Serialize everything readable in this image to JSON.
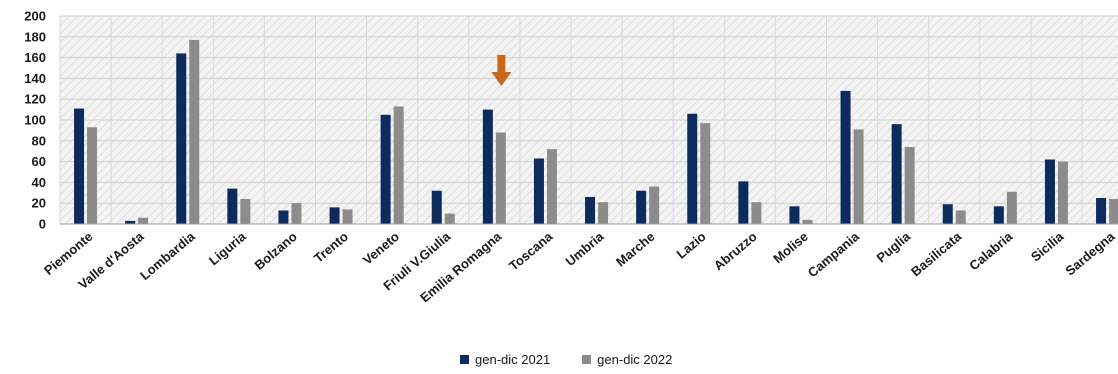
{
  "chart_data": {
    "type": "bar",
    "title": "",
    "xlabel": "",
    "ylabel": "",
    "ylim": [
      0,
      200
    ],
    "yticks": [
      0,
      20,
      40,
      60,
      80,
      100,
      120,
      140,
      160,
      180,
      200
    ],
    "categories": [
      "Piemonte",
      "Valle d'Aosta",
      "Lombardia",
      "Liguria",
      "Bolzano",
      "Trento",
      "Veneto",
      "Friuli V.Giulia",
      "Emilia Romagna",
      "Toscana",
      "Umbria",
      "Marche",
      "Lazio",
      "Abruzzo",
      "Molise",
      "Campania",
      "Puglia",
      "Basilicata",
      "Calabria",
      "Sicilia",
      "Sardegna"
    ],
    "series": [
      {
        "name": "gen-dic 2021",
        "color": "#0d2b5e",
        "values": [
          111,
          3,
          164,
          34,
          13,
          16,
          105,
          32,
          110,
          63,
          26,
          32,
          106,
          41,
          17,
          128,
          96,
          19,
          17,
          62,
          25
        ]
      },
      {
        "name": "gen-dic 2022",
        "color": "#8c8c8c",
        "values": [
          93,
          6,
          177,
          24,
          20,
          14,
          113,
          10,
          88,
          72,
          21,
          36,
          97,
          21,
          4,
          91,
          74,
          13,
          31,
          60,
          24
        ]
      }
    ],
    "grid": true,
    "legend_position": "bottom",
    "annotation": {
      "type": "arrow-down",
      "category": "Emilia Romagna",
      "color": "#c8661a"
    }
  }
}
